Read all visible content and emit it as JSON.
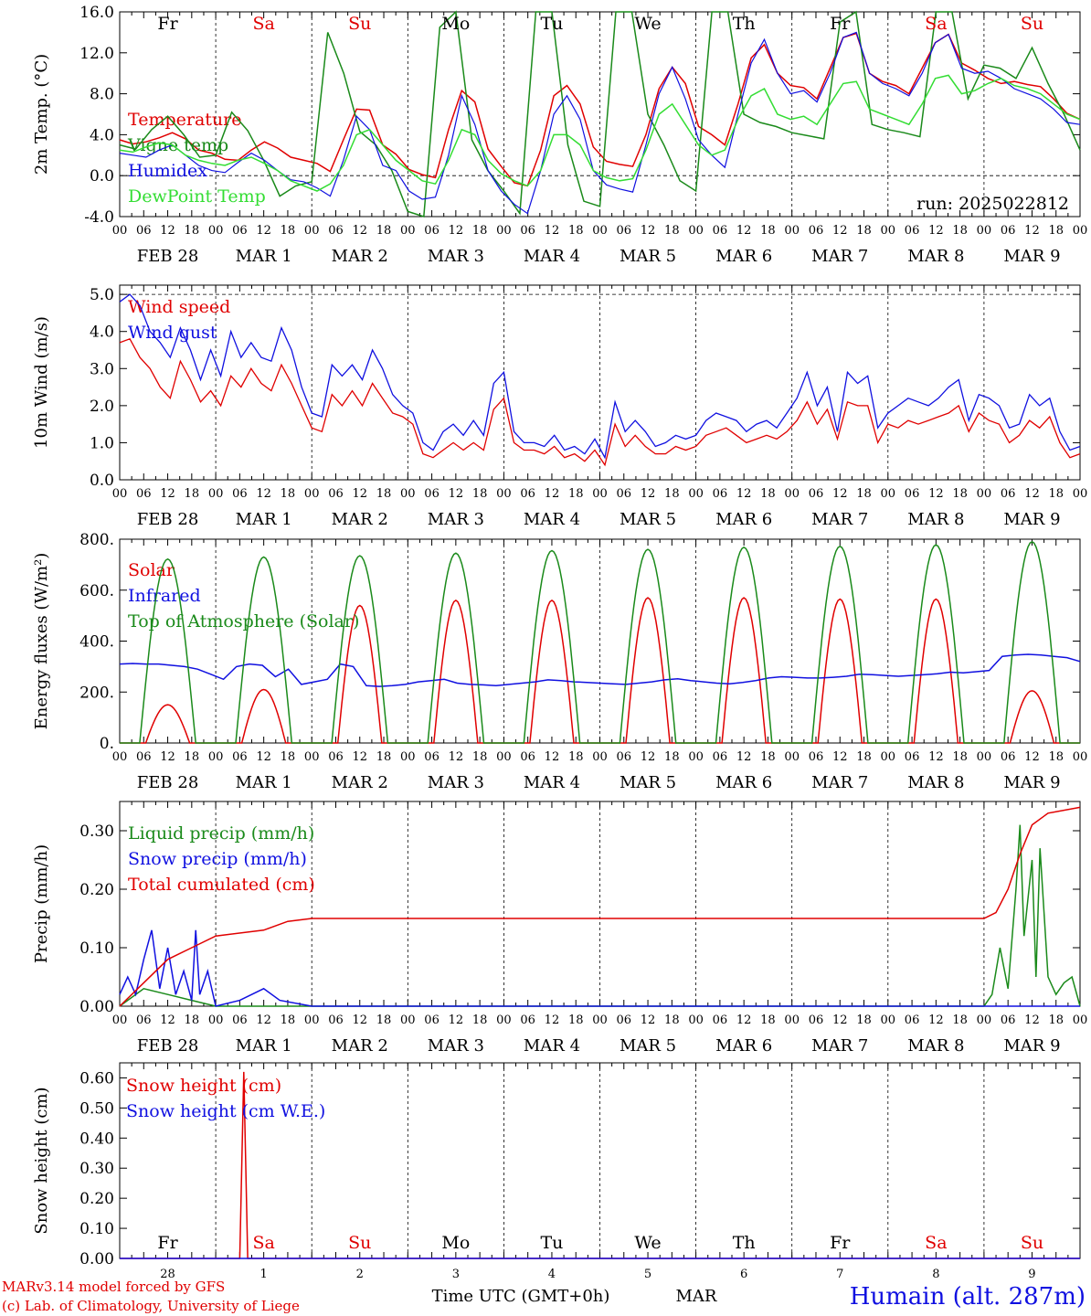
{
  "colors": {
    "red": "#e00000",
    "green": "#1a8a1a",
    "blue": "#1010e0",
    "lime": "#33dd33",
    "black": "#000000"
  },
  "hour_labels": [
    "00",
    "06",
    "12",
    "18"
  ],
  "days": [
    {
      "abbr": "Fr",
      "month_day": "FEB 28",
      "date": "28",
      "weekend": false
    },
    {
      "abbr": "Sa",
      "month_day": "MAR  1",
      "date": "1",
      "weekend": true
    },
    {
      "abbr": "Su",
      "month_day": "MAR  2",
      "date": "2",
      "weekend": true
    },
    {
      "abbr": "Mo",
      "month_day": "MAR  3",
      "date": "3",
      "weekend": false
    },
    {
      "abbr": "Tu",
      "month_day": "MAR  4",
      "date": "4",
      "weekend": false
    },
    {
      "abbr": "We",
      "month_day": "MAR  5",
      "date": "5",
      "weekend": false
    },
    {
      "abbr": "Th",
      "month_day": "MAR  6",
      "date": "6",
      "weekend": false
    },
    {
      "abbr": "Fr",
      "month_day": "MAR  7",
      "date": "7",
      "weekend": false
    },
    {
      "abbr": "Sa",
      "month_day": "MAR  8",
      "date": "8",
      "weekend": true
    },
    {
      "abbr": "Su",
      "month_day": "MAR  9",
      "date": "9",
      "weekend": true
    }
  ],
  "footer": {
    "model": "MARv3.14 model forced by GFS",
    "credit": "(c) Lab. of Climatology, University of Liege",
    "time_label": "Time UTC (GMT+0h)",
    "month": "MAR",
    "station": "Humain (alt. 287m)"
  },
  "chart_data": [
    {
      "type": "line",
      "ylabel": "2m Temp. (°C)",
      "ylim": [
        -4,
        16
      ],
      "yticks": [
        "-4.0",
        "0.0",
        "4.0",
        "8.0",
        "12.0",
        "16.0"
      ],
      "ytick_values": [
        -4,
        0,
        4,
        8,
        12,
        16
      ],
      "dashed_y": [
        0
      ],
      "annotation": "run: 2025022812",
      "x_hours": [
        0,
        3,
        6,
        9,
        12,
        15,
        18,
        21,
        24,
        27,
        30,
        33,
        36,
        39,
        42,
        45,
        48,
        51,
        54,
        57,
        60,
        63,
        66,
        69,
        72,
        75,
        78,
        81,
        84,
        87,
        90,
        93,
        96,
        99,
        102,
        105,
        108,
        111,
        114,
        117,
        120,
        123,
        126,
        129,
        132,
        135,
        138,
        141,
        144,
        147,
        150,
        153,
        156,
        159,
        162,
        165,
        168,
        171,
        174,
        177,
        180,
        183,
        186,
        189,
        192,
        195,
        198,
        201,
        204,
        207,
        210,
        213,
        216,
        219,
        222,
        225,
        228,
        231,
        234,
        237,
        240
      ],
      "series": [
        {
          "name": "Temperature",
          "color": "#e00000",
          "values": [
            3.5,
            3.1,
            3.3,
            3.7,
            4.2,
            3.6,
            2.5,
            2.2,
            1.6,
            1.5,
            2.5,
            3.3,
            2.7,
            1.8,
            1.5,
            1.2,
            0.4,
            3.5,
            6.5,
            6.4,
            3.0,
            2.1,
            0.6,
            0.1,
            -0.2,
            4.5,
            8.3,
            7.2,
            2.6,
            0.9,
            -0.7,
            -1.0,
            2.5,
            7.8,
            8.8,
            7.0,
            2.8,
            1.4,
            1.1,
            0.9,
            4.0,
            8.5,
            10.6,
            9.0,
            4.8,
            4.0,
            3.0,
            7.0,
            11.5,
            12.8,
            10.0,
            8.8,
            8.6,
            7.5,
            10.5,
            13.5,
            13.9,
            10.0,
            9.2,
            8.8,
            8.0,
            10.5,
            13.0,
            13.8,
            11.0,
            10.3,
            9.5,
            9.0,
            9.2,
            8.9,
            8.7,
            7.5,
            6.1,
            5.5
          ]
        },
        {
          "name": "Vigne temp",
          "color": "#1a8a1a",
          "values": [
            3.0,
            2.6,
            4.5,
            5.8,
            4.0,
            1.8,
            2.0,
            6.2,
            4.4,
            1.5,
            -2.0,
            -1.0,
            -0.6,
            14.0,
            10.0,
            4.3,
            3.0,
            0.5,
            -3.5,
            -4.5,
            14.5,
            17.0,
            3.5,
            0.5,
            -1.5,
            -3.7,
            16.0,
            18.0,
            3.0,
            -2.5,
            -3.0,
            17.0,
            18.0,
            6.0,
            3.0,
            -0.5,
            -1.5,
            18.5,
            16.0,
            6.0,
            5.2,
            4.8,
            4.2,
            3.9,
            3.6,
            15.0,
            17.0,
            5.0,
            4.5,
            4.2,
            3.8,
            17.0,
            16.5,
            7.5,
            10.8,
            10.5,
            9.5,
            12.5,
            9.0,
            6.0,
            2.5
          ]
        },
        {
          "name": "Humidex",
          "color": "#1010e0",
          "values": [
            2.2,
            2.0,
            1.8,
            2.5,
            3.0,
            2.0,
            1.0,
            0.5,
            0.3,
            1.3,
            2.2,
            1.5,
            0.5,
            -0.4,
            -0.6,
            -1.2,
            -2.0,
            1.5,
            5.8,
            4.5,
            1.0,
            0.5,
            -1.5,
            -2.3,
            -2.1,
            2.0,
            7.8,
            5.0,
            0.5,
            -1.5,
            -2.8,
            -3.7,
            0.5,
            6.0,
            7.8,
            5.5,
            0.5,
            -0.9,
            -1.3,
            -1.6,
            3.0,
            8.0,
            10.6,
            7.5,
            3.5,
            2.0,
            0.8,
            6.0,
            11.0,
            13.3,
            10.0,
            8.0,
            8.3,
            7.2,
            10.0,
            13.5,
            14.0,
            10.0,
            9.0,
            8.5,
            7.8,
            10.0,
            13.0,
            13.8,
            10.5,
            10.0,
            10.2,
            9.5,
            8.5,
            8.0,
            7.5,
            6.5,
            5.2,
            5.0
          ]
        },
        {
          "name": "DewPoint Temp",
          "color": "#33dd33",
          "values": [
            2.5,
            2.3,
            2.8,
            3.2,
            3.0,
            2.0,
            1.5,
            1.2,
            1.0,
            1.5,
            1.8,
            1.2,
            0.5,
            -0.5,
            -1.0,
            -1.5,
            -0.8,
            1.0,
            4.0,
            4.5,
            3.0,
            1.5,
            0.5,
            -0.5,
            -0.8,
            1.5,
            4.5,
            4.0,
            1.5,
            0.2,
            -0.5,
            -1.0,
            0.5,
            4.0,
            4.0,
            3.0,
            0.5,
            -0.2,
            -0.5,
            -0.3,
            2.5,
            6.0,
            7.0,
            5.0,
            3.0,
            2.0,
            2.5,
            5.5,
            7.8,
            8.5,
            6.0,
            5.5,
            5.8,
            5.0,
            7.0,
            9.0,
            9.2,
            6.5,
            6.0,
            5.5,
            5.0,
            7.0,
            9.5,
            9.8,
            8.0,
            8.3,
            9.0,
            9.5,
            8.8,
            8.5,
            8.0,
            7.0,
            6.0,
            5.5
          ]
        }
      ]
    },
    {
      "type": "line",
      "ylabel": "10m Wind (m/s)",
      "ylim": [
        0,
        5.25
      ],
      "yticks": [
        "0.0",
        "1.0",
        "2.0",
        "3.0",
        "4.0",
        "5.0"
      ],
      "ytick_values": [
        0,
        1,
        2,
        3,
        4,
        5
      ],
      "dashed_y": [
        5
      ],
      "series": [
        {
          "name": "Wind speed",
          "color": "#e00000",
          "values": [
            3.7,
            3.8,
            3.3,
            3.0,
            2.5,
            2.2,
            3.2,
            2.7,
            2.1,
            2.4,
            2.0,
            2.8,
            2.5,
            3.0,
            2.6,
            2.4,
            3.1,
            2.6,
            2.0,
            1.4,
            1.3,
            2.3,
            2.0,
            2.4,
            2.0,
            2.6,
            2.2,
            1.8,
            1.7,
            1.5,
            0.7,
            0.6,
            0.8,
            1.0,
            0.8,
            1.0,
            0.8,
            1.9,
            2.2,
            1.0,
            0.8,
            0.8,
            0.7,
            0.9,
            0.6,
            0.7,
            0.5,
            0.8,
            0.4,
            1.5,
            0.9,
            1.2,
            0.9,
            0.7,
            0.7,
            0.9,
            0.8,
            0.9,
            1.2,
            1.3,
            1.4,
            1.2,
            1.0,
            1.1,
            1.2,
            1.1,
            1.3,
            1.6,
            2.1,
            1.5,
            1.9,
            1.1,
            2.1,
            2.0,
            2.0,
            1.0,
            1.5,
            1.4,
            1.6,
            1.5,
            1.6,
            1.7,
            1.8,
            2.0,
            1.3,
            1.8,
            1.6,
            1.5,
            1.0,
            1.2,
            1.6,
            1.4,
            1.7,
            1.0,
            0.6,
            0.7
          ]
        },
        {
          "name": "Wind gust",
          "color": "#1010e0",
          "values": [
            4.8,
            5.0,
            4.7,
            4.0,
            3.7,
            3.3,
            4.1,
            3.5,
            2.7,
            3.5,
            2.8,
            4.0,
            3.3,
            3.7,
            3.3,
            3.2,
            4.1,
            3.5,
            2.5,
            1.8,
            1.7,
            3.1,
            2.8,
            3.1,
            2.7,
            3.5,
            3.0,
            2.3,
            2.0,
            1.8,
            1.0,
            0.8,
            1.3,
            1.5,
            1.2,
            1.6,
            1.2,
            2.6,
            2.9,
            1.3,
            1.0,
            1.0,
            0.9,
            1.2,
            0.8,
            0.9,
            0.7,
            1.1,
            0.6,
            2.1,
            1.3,
            1.6,
            1.3,
            0.9,
            1.0,
            1.2,
            1.1,
            1.2,
            1.6,
            1.8,
            1.7,
            1.6,
            1.3,
            1.5,
            1.6,
            1.4,
            1.8,
            2.2,
            2.9,
            2.0,
            2.5,
            1.3,
            2.9,
            2.6,
            2.8,
            1.4,
            1.8,
            2.0,
            2.2,
            2.1,
            2.0,
            2.2,
            2.5,
            2.7,
            1.6,
            2.3,
            2.2,
            2.0,
            1.4,
            1.5,
            2.3,
            2.0,
            2.2,
            1.3,
            0.8,
            0.9
          ]
        }
      ]
    },
    {
      "type": "line",
      "ylabel": "Energy fluxes (W/m²)",
      "ylim": [
        0,
        800
      ],
      "yticks": [
        "0.",
        "200.",
        "400.",
        "600.",
        "800."
      ],
      "ytick_values": [
        0,
        200,
        400,
        600,
        800
      ],
      "series": [
        {
          "name": "Solar",
          "color": "#e00000",
          "day_peaks": [
            150,
            210,
            540,
            560,
            560,
            570,
            570,
            565,
            565,
            205
          ]
        },
        {
          "name": "Infrared",
          "color": "#1010e0",
          "values": [
            310,
            312,
            310,
            310,
            305,
            300,
            290,
            270,
            250,
            300,
            310,
            305,
            260,
            290,
            230,
            240,
            250,
            310,
            300,
            225,
            222,
            225,
            230,
            240,
            245,
            250,
            235,
            230,
            228,
            225,
            230,
            235,
            240,
            248,
            245,
            240,
            238,
            235,
            232,
            230,
            235,
            240,
            248,
            252,
            245,
            240,
            235,
            232,
            238,
            245,
            255,
            260,
            258,
            255,
            255,
            258,
            262,
            270,
            268,
            265,
            262,
            265,
            268,
            272,
            278,
            275,
            280,
            285,
            340,
            345,
            348,
            345,
            340,
            335,
            320
          ]
        },
        {
          "name": "Top of Atmosphere (Solar)",
          "color": "#1a8a1a",
          "day_peaks": [
            722,
            730,
            735,
            745,
            755,
            760,
            768,
            772,
            778,
            790
          ]
        }
      ]
    },
    {
      "type": "line",
      "ylabel": "Precip (mm/h)",
      "ylim": [
        0,
        0.35
      ],
      "yticks": [
        "0.00",
        "0.10",
        "0.20",
        "0.30"
      ],
      "ytick_values": [
        0,
        0.1,
        0.2,
        0.3
      ],
      "series": [
        {
          "name": "Liquid precip (mm/h)",
          "color": "#1a8a1a",
          "points": [
            [
              0,
              0
            ],
            [
              6,
              0.03
            ],
            [
              12,
              0.02
            ],
            [
              18,
              0.01
            ],
            [
              24,
              0
            ],
            [
              216,
              0
            ],
            [
              218,
              0.02
            ],
            [
              220,
              0.1
            ],
            [
              222,
              0.03
            ],
            [
              224,
              0.2
            ],
            [
              225,
              0.31
            ],
            [
              226,
              0.12
            ],
            [
              228,
              0.25
            ],
            [
              229,
              0.05
            ],
            [
              230,
              0.27
            ],
            [
              232,
              0.05
            ],
            [
              234,
              0.02
            ],
            [
              236,
              0.04
            ],
            [
              238,
              0.05
            ],
            [
              240,
              0
            ]
          ]
        },
        {
          "name": "Snow precip (mm/h)",
          "color": "#1010e0",
          "points": [
            [
              0,
              0.02
            ],
            [
              2,
              0.05
            ],
            [
              4,
              0.02
            ],
            [
              6,
              0.08
            ],
            [
              8,
              0.13
            ],
            [
              10,
              0.03
            ],
            [
              12,
              0.1
            ],
            [
              14,
              0.02
            ],
            [
              16,
              0.06
            ],
            [
              18,
              0.01
            ],
            [
              19,
              0.13
            ],
            [
              20,
              0.02
            ],
            [
              22,
              0.06
            ],
            [
              24,
              0
            ],
            [
              30,
              0.01
            ],
            [
              36,
              0.03
            ],
            [
              40,
              0.01
            ],
            [
              48,
              0
            ],
            [
              240,
              0
            ]
          ]
        },
        {
          "name": "Total cumulated (cm)",
          "color": "#e00000",
          "points": [
            [
              0,
              0
            ],
            [
              6,
              0.04
            ],
            [
              12,
              0.08
            ],
            [
              18,
              0.1
            ],
            [
              24,
              0.12
            ],
            [
              36,
              0.13
            ],
            [
              42,
              0.145
            ],
            [
              48,
              0.15
            ],
            [
              216,
              0.15
            ],
            [
              219,
              0.16
            ],
            [
              222,
              0.2
            ],
            [
              225,
              0.26
            ],
            [
              228,
              0.31
            ],
            [
              232,
              0.33
            ],
            [
              240,
              0.34
            ]
          ]
        }
      ]
    },
    {
      "type": "line",
      "ylabel": "Snow height (cm)",
      "ylim": [
        0,
        0.65
      ],
      "yticks": [
        "0.00",
        "0.10",
        "0.20",
        "0.30",
        "0.40",
        "0.50",
        "0.60"
      ],
      "ytick_values": [
        0,
        0.1,
        0.2,
        0.3,
        0.4,
        0.5,
        0.6
      ],
      "series": [
        {
          "name": "Snow height (cm)",
          "color": "#e00000",
          "points": [
            [
              0,
              0
            ],
            [
              30,
              0
            ],
            [
              31,
              0.62
            ],
            [
              32,
              0
            ],
            [
              240,
              0
            ]
          ]
        },
        {
          "name": "Snow height (cm W.E.)",
          "color": "#1010e0",
          "points": [
            [
              0,
              0
            ],
            [
              240,
              0
            ]
          ]
        }
      ]
    }
  ]
}
